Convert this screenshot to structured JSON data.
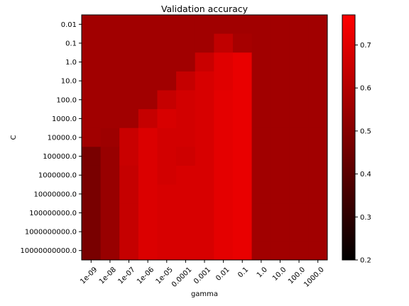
{
  "chart_data": {
    "type": "heatmap",
    "title": "Validation accuracy",
    "xlabel": "gamma",
    "ylabel": "C",
    "x_categories": [
      "1e-09",
      "1e-08",
      "1e-07",
      "1e-06",
      "1e-05",
      "0.0001",
      "0.001",
      "0.01",
      "0.1",
      "1.0",
      "10.0",
      "100.0",
      "1000.0"
    ],
    "y_categories": [
      "0.01",
      "0.1",
      "1.0",
      "10.0",
      "100.0",
      "1000.0",
      "10000.0",
      "100000.0",
      "1000000.0",
      "10000000.0",
      "100000000.0",
      "1000000000.0",
      "10000000000.0"
    ],
    "values": [
      [
        0.56,
        0.56,
        0.56,
        0.56,
        0.56,
        0.56,
        0.56,
        0.56,
        0.56,
        0.56,
        0.56,
        0.56,
        0.56
      ],
      [
        0.56,
        0.56,
        0.56,
        0.56,
        0.56,
        0.56,
        0.56,
        0.63,
        0.57,
        0.56,
        0.56,
        0.56,
        0.56
      ],
      [
        0.56,
        0.56,
        0.56,
        0.56,
        0.56,
        0.56,
        0.65,
        0.7,
        0.72,
        0.56,
        0.56,
        0.56,
        0.56
      ],
      [
        0.56,
        0.56,
        0.56,
        0.56,
        0.56,
        0.64,
        0.68,
        0.7,
        0.72,
        0.56,
        0.56,
        0.56,
        0.56
      ],
      [
        0.56,
        0.56,
        0.56,
        0.56,
        0.64,
        0.67,
        0.68,
        0.71,
        0.72,
        0.56,
        0.56,
        0.56,
        0.56
      ],
      [
        0.56,
        0.56,
        0.56,
        0.64,
        0.68,
        0.67,
        0.68,
        0.71,
        0.72,
        0.56,
        0.56,
        0.56,
        0.56
      ],
      [
        0.56,
        0.55,
        0.65,
        0.69,
        0.67,
        0.67,
        0.68,
        0.71,
        0.72,
        0.56,
        0.56,
        0.56,
        0.56
      ],
      [
        0.47,
        0.54,
        0.65,
        0.69,
        0.67,
        0.66,
        0.68,
        0.71,
        0.72,
        0.56,
        0.56,
        0.56,
        0.56
      ],
      [
        0.47,
        0.54,
        0.64,
        0.69,
        0.67,
        0.68,
        0.68,
        0.71,
        0.72,
        0.56,
        0.56,
        0.56,
        0.56
      ],
      [
        0.47,
        0.54,
        0.64,
        0.69,
        0.68,
        0.68,
        0.68,
        0.71,
        0.72,
        0.56,
        0.56,
        0.56,
        0.56
      ],
      [
        0.47,
        0.54,
        0.64,
        0.69,
        0.68,
        0.68,
        0.68,
        0.71,
        0.72,
        0.56,
        0.56,
        0.56,
        0.56
      ],
      [
        0.47,
        0.54,
        0.64,
        0.69,
        0.68,
        0.68,
        0.68,
        0.71,
        0.72,
        0.56,
        0.56,
        0.56,
        0.56
      ],
      [
        0.47,
        0.54,
        0.64,
        0.69,
        0.68,
        0.68,
        0.68,
        0.71,
        0.72,
        0.56,
        0.56,
        0.56,
        0.56
      ]
    ],
    "colorbar": {
      "range": [
        0.2,
        0.77
      ],
      "ticks": [
        "0.2",
        "0.3",
        "0.4",
        "0.5",
        "0.6",
        "0.7"
      ],
      "colors": [
        "#000000",
        "#ff0000"
      ]
    },
    "grid": false
  }
}
